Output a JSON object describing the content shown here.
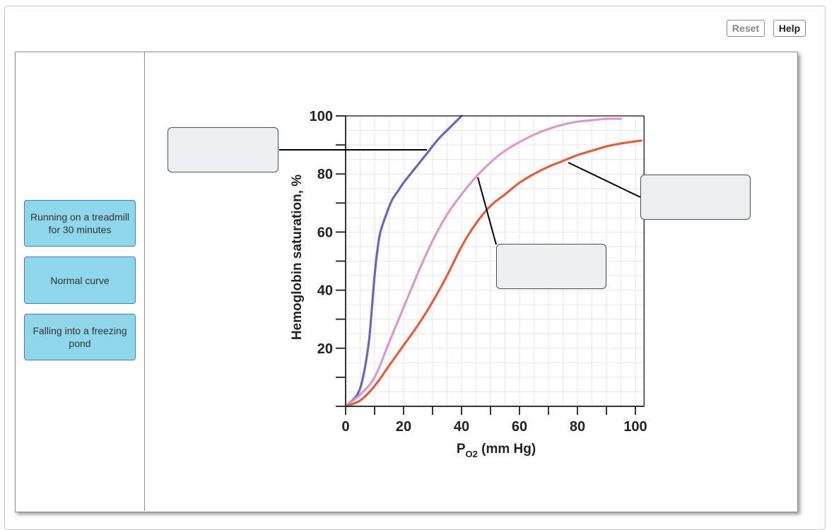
{
  "toolbar": {
    "reset_label": "Reset",
    "help_label": "Help"
  },
  "labels": [
    {
      "text": "Running on a treadmill for 30 minutes"
    },
    {
      "text": "Normal curve"
    },
    {
      "text": "Falling into a freezing pond"
    }
  ],
  "chart_data": {
    "type": "line",
    "xlabel_main": "P",
    "xlabel_sub": "O2",
    "xlabel_unit": " (mm Hg)",
    "ylabel": "Hemoglobin saturation, %",
    "xlim": [
      0,
      103
    ],
    "ylim": [
      0,
      100
    ],
    "x_ticks": [
      0,
      20,
      40,
      60,
      80,
      100
    ],
    "y_ticks": [
      20,
      40,
      60,
      80,
      100
    ],
    "grid": true,
    "series": [
      {
        "color": "#6b66b5",
        "x": [
          0,
          4,
          6,
          8,
          9,
          10,
          11,
          12,
          14,
          16,
          18,
          20,
          24,
          28,
          32,
          36,
          40
        ],
        "y": [
          0,
          4,
          10,
          22,
          33,
          45,
          54,
          60,
          66,
          71,
          74,
          77,
          82,
          87,
          92,
          96,
          100
        ]
      },
      {
        "color": "#d99ad0",
        "x": [
          0,
          5,
          10,
          15,
          20,
          25,
          30,
          35,
          40,
          45,
          50,
          55,
          60,
          65,
          70,
          75,
          80,
          85,
          90,
          95
        ],
        "y": [
          0,
          4,
          10,
          22,
          34,
          46,
          57,
          66,
          73,
          79,
          84,
          88,
          91,
          93.5,
          95.5,
          97,
          98,
          98.5,
          99,
          99
        ]
      },
      {
        "color": "#e0603a",
        "x": [
          0,
          5,
          10,
          15,
          20,
          25,
          30,
          35,
          40,
          45,
          50,
          55,
          60,
          65,
          70,
          75,
          80,
          85,
          90,
          95,
          102
        ],
        "y": [
          0,
          2,
          7,
          14,
          21,
          28,
          36,
          45,
          55,
          63,
          69,
          73,
          77,
          80,
          82.5,
          84.5,
          86.5,
          88,
          89.5,
          90.5,
          91.5
        ]
      }
    ]
  }
}
